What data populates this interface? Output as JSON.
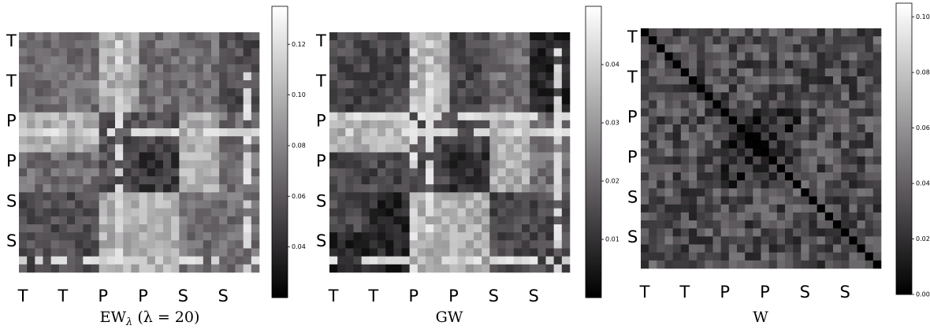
{
  "chart_data": [
    {
      "type": "heatmap",
      "title": "EWλ (λ = 20)",
      "caption_parts": {
        "main": "EW",
        "sub": "λ",
        "rest": " (λ = 20)"
      },
      "x_tick_labels": [
        "T",
        "T",
        "P",
        "P",
        "S",
        "S"
      ],
      "y_tick_labels": [
        "T",
        "T",
        "P",
        "P",
        "S",
        "S"
      ],
      "grid_size": 30,
      "colormap": "bone",
      "vmin": 0.02,
      "vmax": 0.135,
      "colorbar_ticks": [
        0.04,
        0.06,
        0.08,
        0.1,
        0.12
      ],
      "colorbar_tick_labels": [
        "0.04",
        "0.06",
        "0.08",
        "0.10",
        "0.12"
      ],
      "group_sizes": [
        5,
        5,
        5,
        5,
        5,
        5
      ],
      "group_pattern": [
        [
          "med",
          "med",
          "high",
          "med",
          "med",
          "low"
        ],
        [
          "med",
          "med",
          "high",
          "med",
          "med",
          "low"
        ],
        [
          "high",
          "high",
          "low",
          "low",
          "high",
          "med"
        ],
        [
          "med",
          "med",
          "low",
          "vlow",
          "high",
          "med"
        ],
        [
          "low",
          "low",
          "high",
          "high",
          "med",
          "med"
        ],
        [
          "low",
          "low",
          "high",
          "high",
          "med",
          "med"
        ]
      ],
      "level_values": {
        "vlow": 0.045,
        "low": 0.055,
        "med": 0.07,
        "high": 0.1
      },
      "bright_rows": [
        12,
        28
      ],
      "bright_cols": [
        12
      ],
      "bright_value": 0.125
    },
    {
      "type": "heatmap",
      "title": "GW",
      "caption_parts": {
        "main": "GW",
        "sub": "",
        "rest": ""
      },
      "x_tick_labels": [
        "T",
        "T",
        "P",
        "P",
        "S",
        "S"
      ],
      "y_tick_labels": [
        "T",
        "T",
        "P",
        "P",
        "S",
        "S"
      ],
      "grid_size": 30,
      "colormap": "bone",
      "vmin": 0.0,
      "vmax": 0.05,
      "colorbar_ticks": [
        0.01,
        0.02,
        0.03,
        0.04
      ],
      "colorbar_tick_labels": [
        "0.01",
        "0.02",
        "0.03",
        "0.04"
      ],
      "group_sizes": [
        5,
        5,
        5,
        5,
        5,
        5
      ],
      "group_pattern": [
        [
          "low",
          "low",
          "high",
          "low",
          "med",
          "vlow"
        ],
        [
          "low",
          "low",
          "high",
          "low",
          "med",
          "vlow"
        ],
        [
          "high",
          "high",
          "low",
          "low",
          "high",
          "med"
        ],
        [
          "low",
          "low",
          "low",
          "vlow",
          "high",
          "med"
        ],
        [
          "low",
          "vlow",
          "high",
          "high",
          "low",
          "low"
        ],
        [
          "vlow",
          "vlow",
          "high",
          "high",
          "low",
          "low"
        ]
      ],
      "level_values": {
        "vlow": 0.008,
        "low": 0.014,
        "med": 0.022,
        "high": 0.034
      },
      "bright_rows": [
        12,
        28
      ],
      "bright_cols": [
        10
      ],
      "bright_value": 0.046
    },
    {
      "type": "heatmap",
      "title": "W",
      "caption_parts": {
        "main": "W",
        "sub": "",
        "rest": ""
      },
      "x_tick_labels": [
        "T",
        "T",
        "P",
        "P",
        "S",
        "S"
      ],
      "y_tick_labels": [
        "T",
        "T",
        "P",
        "P",
        "S",
        "S"
      ],
      "grid_size": 30,
      "colormap": "bone",
      "vmin": 0.0,
      "vmax": 0.105,
      "colorbar_ticks": [
        0.0,
        0.02,
        0.04,
        0.06,
        0.08,
        0.1
      ],
      "colorbar_tick_labels": [
        "0.00",
        "0.02",
        "0.04",
        "0.06",
        "0.08",
        "0.10"
      ],
      "group_sizes": [
        5,
        5,
        5,
        5,
        5,
        5
      ],
      "group_pattern": [
        [
          "med",
          "med",
          "med",
          "med",
          "med",
          "med"
        ],
        [
          "med",
          "med",
          "med",
          "med",
          "med",
          "med"
        ],
        [
          "med",
          "med",
          "low",
          "low",
          "med",
          "med"
        ],
        [
          "med",
          "med",
          "low",
          "low",
          "med",
          "med"
        ],
        [
          "med",
          "med",
          "med",
          "med",
          "med",
          "med"
        ],
        [
          "med",
          "med",
          "med",
          "med",
          "med",
          "med"
        ]
      ],
      "level_values": {
        "vlow": 0.01,
        "low": 0.018,
        "med": 0.032,
        "high": 0.06
      },
      "diagonal_value": 0.0,
      "bright_rows": [],
      "bright_cols": [],
      "bright_value": 0.1
    }
  ]
}
